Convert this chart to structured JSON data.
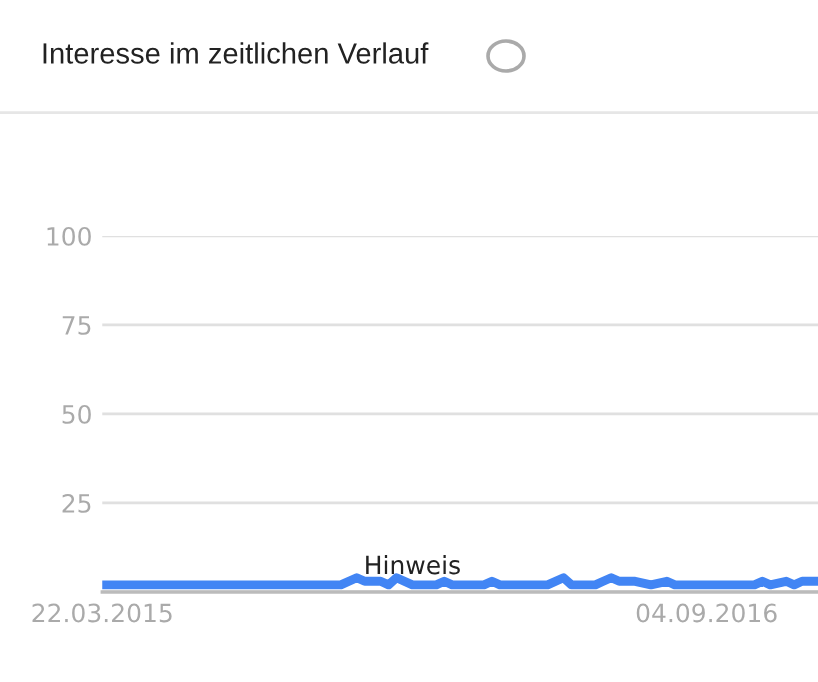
{
  "chart_data": {
    "type": "line",
    "title": "Interesse im zeitlichen Verlauf",
    "x": [
      "2015-03-22",
      "2015-10-18",
      "2015-11-01",
      "2015-11-08",
      "2015-11-22",
      "2015-11-29",
      "2015-12-06",
      "2015-12-20",
      "2016-01-10",
      "2016-01-17",
      "2016-01-24",
      "2016-02-21",
      "2016-02-28",
      "2016-03-06",
      "2016-04-17",
      "2016-05-01",
      "2016-05-08",
      "2016-05-29",
      "2016-06-05",
      "2016-06-12",
      "2016-06-19",
      "2016-07-03",
      "2016-07-17",
      "2016-07-31",
      "2016-08-07",
      "2016-10-16",
      "2016-10-23",
      "2016-10-30",
      "2016-11-13",
      "2016-11-20",
      "2016-11-27",
      "2016-12-04",
      "2016-12-11"
    ],
    "series": [
      {
        "color": "#4285f4",
        "values": [
          2,
          2,
          4,
          3,
          3,
          2,
          4,
          2,
          2,
          3,
          2,
          2,
          3,
          2,
          2,
          4,
          2,
          2,
          3,
          4,
          3,
          3,
          2,
          3,
          2,
          2,
          3,
          2,
          3,
          2,
          3,
          3,
          3
        ]
      }
    ],
    "xlim": [
      "2015-03-22",
      "2016-12-11"
    ],
    "xticks": [
      {
        "value": "2015-03-22",
        "label": "22.03.2015"
      },
      {
        "value": "2016-09-04",
        "label": "04.09.2016"
      }
    ],
    "ylim": [
      0,
      100
    ],
    "yticks": [
      {
        "value": 0,
        "label": null
      },
      25,
      50,
      75,
      100
    ],
    "grid": "y",
    "legend": false,
    "marker": "none",
    "line_style": "solid",
    "annotations": [
      {
        "text": "Hinweis",
        "x": "2015-12-20",
        "y": 2
      }
    ]
  }
}
